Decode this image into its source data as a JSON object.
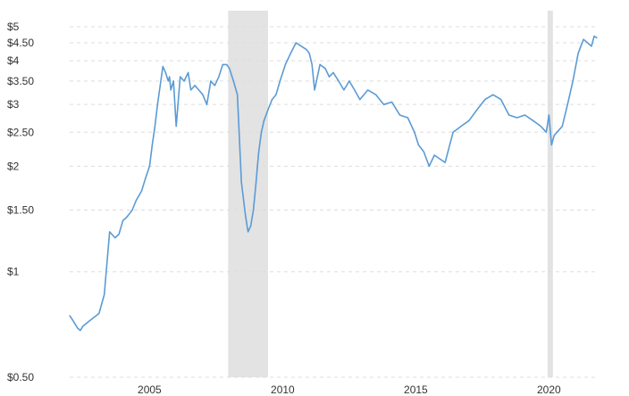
{
  "chart_data": {
    "type": "line",
    "title": "",
    "xlabel": "",
    "ylabel": "",
    "y_scale": "log",
    "ylim": [
      0.5,
      5
    ],
    "xlim": [
      2002.0,
      2021.8
    ],
    "grid": true,
    "colors": {
      "line": "#5b9bd5",
      "recession": "#e3e3e3",
      "grid": "#dddddd"
    },
    "y_ticks": [
      {
        "value": 5,
        "label": "$5"
      },
      {
        "value": 4.5,
        "label": "$4.50"
      },
      {
        "value": 4,
        "label": "$4"
      },
      {
        "value": 3.5,
        "label": "$3.50"
      },
      {
        "value": 3,
        "label": "$3"
      },
      {
        "value": 2.5,
        "label": "$2.50"
      },
      {
        "value": 2,
        "label": "$2"
      },
      {
        "value": 1.5,
        "label": "$1.50"
      },
      {
        "value": 1,
        "label": "$1"
      },
      {
        "value": 0.5,
        "label": "$0.50"
      }
    ],
    "x_ticks": [
      {
        "value": 2005,
        "label": "2005"
      },
      {
        "value": 2010,
        "label": "2010"
      },
      {
        "value": 2015,
        "label": "2015"
      },
      {
        "value": 2020,
        "label": "2020"
      }
    ],
    "recessions": [
      {
        "start": 2007.95,
        "end": 2009.45
      },
      {
        "start": 2019.95,
        "end": 2020.15
      }
    ],
    "series": [
      {
        "x": [
          2002.0,
          2002.1,
          2002.2,
          2002.3,
          2002.4,
          2002.5,
          2002.7,
          2002.9,
          2003.1,
          2003.3,
          2003.5,
          2003.7,
          2003.85,
          2004.0,
          2004.1,
          2004.2,
          2004.35,
          2004.5,
          2004.7,
          2004.85,
          2005.0,
          2005.1,
          2005.2,
          2005.3,
          2005.4,
          2005.5,
          2005.6,
          2005.7,
          2005.75,
          2005.8,
          2005.9,
          2006.0,
          2006.15,
          2006.3,
          2006.45,
          2006.55,
          2006.7,
          2006.85,
          2007.0,
          2007.15,
          2007.3,
          2007.45,
          2007.6,
          2007.75,
          2007.9,
          2008.0,
          2008.15,
          2008.3,
          2008.45,
          2008.6,
          2008.7,
          2008.8,
          2008.9,
          2009.0,
          2009.05,
          2009.1,
          2009.2,
          2009.3,
          2009.45,
          2009.6,
          2009.75,
          2009.9,
          2010.1,
          2010.3,
          2010.5,
          2010.7,
          2010.9,
          2011.0,
          2011.1,
          2011.2,
          2011.4,
          2011.6,
          2011.75,
          2011.9,
          2012.1,
          2012.3,
          2012.5,
          2012.7,
          2012.9,
          2013.2,
          2013.5,
          2013.8,
          2014.1,
          2014.4,
          2014.7,
          2014.95,
          2015.1,
          2015.3,
          2015.5,
          2015.7,
          2015.9,
          2016.1,
          2016.4,
          2016.7,
          2017.0,
          2017.3,
          2017.6,
          2017.9,
          2018.2,
          2018.5,
          2018.8,
          2019.1,
          2019.4,
          2019.7,
          2019.9,
          2020.0,
          2020.1,
          2020.2,
          2020.3,
          2020.5,
          2020.7,
          2020.9,
          2021.1,
          2021.2,
          2021.3,
          2021.45,
          2021.6,
          2021.7,
          2021.8
        ],
        "values": [
          0.75,
          0.73,
          0.71,
          0.69,
          0.68,
          0.7,
          0.72,
          0.74,
          0.76,
          0.86,
          1.3,
          1.25,
          1.28,
          1.4,
          1.42,
          1.45,
          1.5,
          1.6,
          1.7,
          1.85,
          2.0,
          2.3,
          2.6,
          3.0,
          3.4,
          3.85,
          3.7,
          3.5,
          3.6,
          3.3,
          3.5,
          2.6,
          3.6,
          3.5,
          3.7,
          3.3,
          3.4,
          3.3,
          3.2,
          3.0,
          3.5,
          3.4,
          3.6,
          3.9,
          3.9,
          3.8,
          3.5,
          3.2,
          1.8,
          1.45,
          1.3,
          1.35,
          1.5,
          1.8,
          2.0,
          2.2,
          2.5,
          2.7,
          2.9,
          3.1,
          3.2,
          3.5,
          3.9,
          4.2,
          4.5,
          4.4,
          4.3,
          4.2,
          3.9,
          3.3,
          3.9,
          3.8,
          3.6,
          3.7,
          3.5,
          3.3,
          3.5,
          3.3,
          3.1,
          3.3,
          3.2,
          3.0,
          3.05,
          2.8,
          2.75,
          2.5,
          2.3,
          2.2,
          2.0,
          2.15,
          2.1,
          2.05,
          2.5,
          2.6,
          2.7,
          2.9,
          3.1,
          3.2,
          3.1,
          2.8,
          2.75,
          2.8,
          2.7,
          2.6,
          2.5,
          2.8,
          2.3,
          2.45,
          2.5,
          2.6,
          3.0,
          3.5,
          4.2,
          4.4,
          4.6,
          4.5,
          4.4,
          4.7,
          4.65
        ]
      }
    ]
  }
}
